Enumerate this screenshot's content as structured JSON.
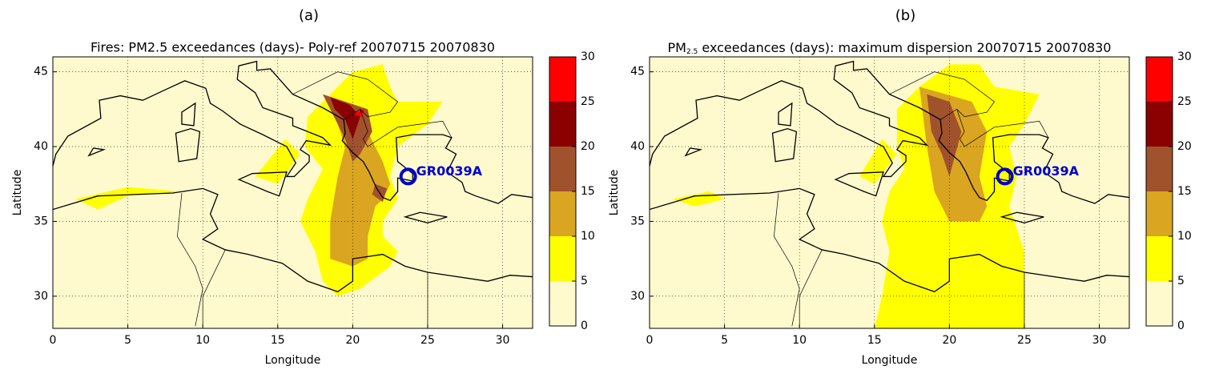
{
  "panels": [
    {
      "label": "(a)",
      "title": "Fires: PM2.5 exceedances (days)- Poly-ref 20070715 20070830",
      "xlabel": "Longitude",
      "ylabel": "Latitude",
      "xlim": [
        0,
        32
      ],
      "ylim": [
        27.85,
        46
      ],
      "xticks": [
        0,
        5,
        10,
        15,
        20,
        25,
        30
      ],
      "yticks": [
        30,
        35,
        40,
        45
      ],
      "grid": true,
      "colorbar": {
        "ticks": [
          0,
          5,
          10,
          15,
          20,
          25,
          30
        ],
        "colors": [
          "#fffacd",
          "#ffff00",
          "#daa520",
          "#a0522d",
          "#8b0000",
          "#ff0000"
        ]
      },
      "station": {
        "label": "GR0039A",
        "lon": 23.7,
        "lat": 38.0,
        "color": "#0000cd"
      }
    },
    {
      "label": "(b)",
      "title": {
        "base": "PM",
        "subscript": "2.5",
        "rest": " exceedances (days): maximum dispersion 20070715 20070830"
      },
      "xlabel": "Longitude",
      "ylabel": "Latitude",
      "xlim": [
        0,
        32
      ],
      "ylim": [
        27.85,
        46
      ],
      "xticks": [
        0,
        5,
        10,
        15,
        20,
        25,
        30
      ],
      "yticks": [
        30,
        35,
        40,
        45
      ],
      "grid": true,
      "colorbar": {
        "ticks": [
          0,
          5,
          10,
          15,
          20,
          25,
          30
        ],
        "colors": [
          "#fffacd",
          "#ffff00",
          "#daa520",
          "#a0522d",
          "#8b0000",
          "#ff0000"
        ]
      },
      "station": {
        "label": "GR0039A",
        "lon": 23.7,
        "lat": 38.0,
        "color": "#0000cd"
      }
    }
  ]
}
